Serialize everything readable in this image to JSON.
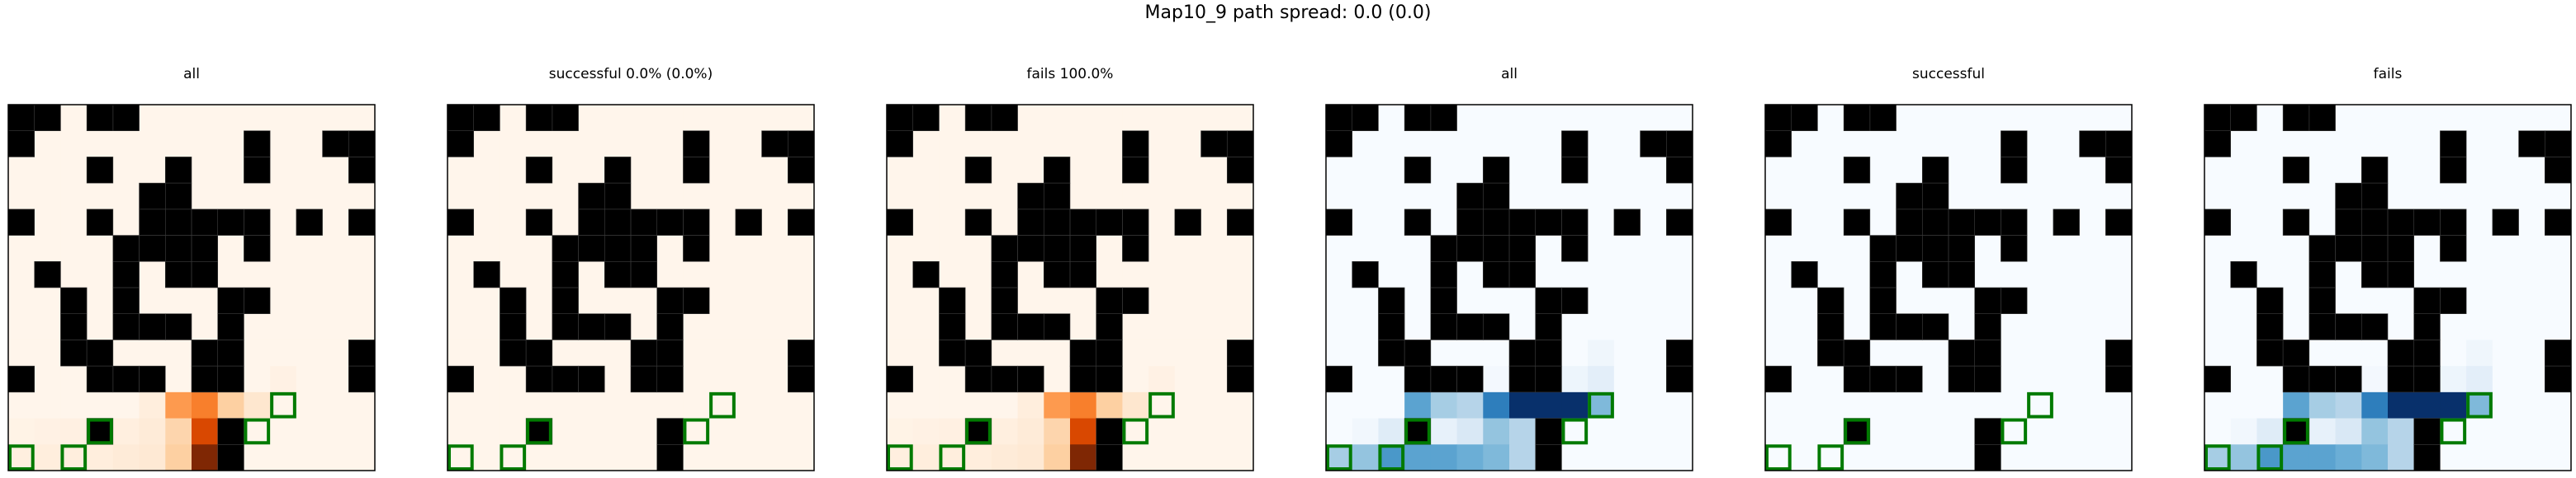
{
  "title": "Map10_9 path spread: 0.0 (0.0)",
  "colors": {
    "wall": "#000000",
    "start_marker": "#007a00",
    "frame": "#000000",
    "oranges_low": "#fff5eb",
    "blues_low": "#f7fbff"
  },
  "chart_data": {
    "type": "heatmap",
    "grid_size": 14,
    "walls": [
      [
        1,
        1,
        0,
        1,
        1,
        0,
        0,
        0,
        0,
        0,
        0,
        0,
        0,
        0
      ],
      [
        1,
        0,
        0,
        0,
        0,
        0,
        0,
        0,
        0,
        1,
        0,
        0,
        1,
        1
      ],
      [
        0,
        0,
        0,
        1,
        0,
        0,
        1,
        0,
        0,
        1,
        0,
        0,
        0,
        1
      ],
      [
        0,
        0,
        0,
        0,
        0,
        1,
        1,
        0,
        0,
        0,
        0,
        0,
        0,
        0
      ],
      [
        1,
        0,
        0,
        1,
        0,
        1,
        1,
        1,
        1,
        1,
        0,
        1,
        0,
        1
      ],
      [
        0,
        0,
        0,
        0,
        1,
        1,
        1,
        1,
        0,
        1,
        0,
        0,
        0,
        0
      ],
      [
        0,
        1,
        0,
        0,
        1,
        0,
        1,
        1,
        0,
        0,
        0,
        0,
        0,
        0
      ],
      [
        0,
        0,
        1,
        0,
        1,
        0,
        0,
        0,
        1,
        1,
        0,
        0,
        0,
        0
      ],
      [
        0,
        0,
        1,
        0,
        1,
        1,
        1,
        0,
        1,
        0,
        0,
        0,
        0,
        0
      ],
      [
        0,
        0,
        1,
        1,
        0,
        0,
        0,
        1,
        1,
        0,
        0,
        0,
        0,
        1
      ],
      [
        1,
        0,
        0,
        1,
        1,
        1,
        0,
        1,
        1,
        0,
        0,
        0,
        0,
        1
      ],
      [
        0,
        0,
        0,
        0,
        0,
        0,
        0,
        0,
        0,
        0,
        0,
        0,
        0,
        0
      ],
      [
        0,
        0,
        0,
        1,
        0,
        0,
        0,
        0,
        1,
        0,
        0,
        0,
        0,
        0
      ],
      [
        0,
        0,
        0,
        0,
        0,
        0,
        0,
        0,
        1,
        0,
        0,
        0,
        0,
        0
      ]
    ],
    "markers": [
      [
        11,
        10
      ],
      [
        12,
        3
      ],
      [
        12,
        9
      ],
      [
        13,
        0
      ],
      [
        13,
        2
      ]
    ],
    "panels": [
      {
        "title": "all",
        "cmap": "oranges",
        "values": [
          [
            0,
            0,
            0,
            0,
            0,
            0,
            0,
            0,
            0,
            0,
            0,
            0,
            0,
            0
          ],
          [
            0,
            0,
            0,
            0,
            0,
            0,
            0,
            0,
            0,
            0,
            0,
            0,
            0,
            0
          ],
          [
            0,
            0,
            0,
            0,
            0,
            0,
            0,
            0,
            0,
            0,
            0,
            0,
            0,
            0
          ],
          [
            0,
            0,
            0,
            0,
            0,
            0,
            0,
            0,
            0,
            0,
            0,
            0,
            0,
            0
          ],
          [
            0,
            0,
            0,
            0,
            0,
            0,
            0,
            0,
            0,
            0,
            0,
            0,
            0,
            0
          ],
          [
            0,
            0,
            0,
            0,
            0,
            0,
            0,
            0,
            0,
            0,
            0,
            0,
            0,
            0
          ],
          [
            0,
            0,
            0,
            0,
            0,
            0,
            0,
            0,
            0,
            0,
            0,
            0,
            0,
            0
          ],
          [
            0,
            0,
            0,
            0,
            0,
            0,
            0,
            0,
            0,
            0,
            0,
            0,
            0,
            0
          ],
          [
            0,
            0,
            0,
            0,
            0,
            0,
            0,
            0,
            0,
            0,
            0,
            0,
            0,
            0
          ],
          [
            0,
            0,
            0,
            0,
            0,
            0,
            0,
            0,
            0,
            0,
            0,
            0,
            0,
            0
          ],
          [
            0,
            0,
            0,
            0,
            0,
            0,
            0,
            0,
            0,
            0,
            0.03,
            0,
            0,
            0
          ],
          [
            0,
            0,
            0,
            0,
            0,
            0.06,
            0.45,
            0.55,
            0.25,
            0.12,
            0,
            0,
            0,
            0
          ],
          [
            0.02,
            0.03,
            0.04,
            0,
            0.05,
            0.08,
            0.22,
            0.75,
            0,
            0,
            0,
            0,
            0,
            0
          ],
          [
            0.05,
            0.06,
            0.06,
            0.06,
            0.08,
            0.1,
            0.25,
            1.0,
            0,
            0,
            0,
            0,
            0,
            0
          ]
        ]
      },
      {
        "title": "successful 0.0% (0.0%)",
        "cmap": "oranges",
        "values": []
      },
      {
        "title": "fails 100.0%",
        "cmap": "oranges",
        "values": [
          [
            0,
            0,
            0,
            0,
            0,
            0,
            0,
            0,
            0,
            0,
            0,
            0,
            0,
            0
          ],
          [
            0,
            0,
            0,
            0,
            0,
            0,
            0,
            0,
            0,
            0,
            0,
            0,
            0,
            0
          ],
          [
            0,
            0,
            0,
            0,
            0,
            0,
            0,
            0,
            0,
            0,
            0,
            0,
            0,
            0
          ],
          [
            0,
            0,
            0,
            0,
            0,
            0,
            0,
            0,
            0,
            0,
            0,
            0,
            0,
            0
          ],
          [
            0,
            0,
            0,
            0,
            0,
            0,
            0,
            0,
            0,
            0,
            0,
            0,
            0,
            0
          ],
          [
            0,
            0,
            0,
            0,
            0,
            0,
            0,
            0,
            0,
            0,
            0,
            0,
            0,
            0
          ],
          [
            0,
            0,
            0,
            0,
            0,
            0,
            0,
            0,
            0,
            0,
            0,
            0,
            0,
            0
          ],
          [
            0,
            0,
            0,
            0,
            0,
            0,
            0,
            0,
            0,
            0,
            0,
            0,
            0,
            0
          ],
          [
            0,
            0,
            0,
            0,
            0,
            0,
            0,
            0,
            0,
            0,
            0,
            0,
            0,
            0
          ],
          [
            0,
            0,
            0,
            0,
            0,
            0,
            0,
            0,
            0,
            0,
            0,
            0,
            0,
            0
          ],
          [
            0,
            0,
            0,
            0,
            0,
            0,
            0,
            0,
            0,
            0,
            0.03,
            0,
            0,
            0
          ],
          [
            0,
            0,
            0,
            0,
            0,
            0.06,
            0.45,
            0.55,
            0.25,
            0.12,
            0,
            0,
            0,
            0
          ],
          [
            0.02,
            0.03,
            0.04,
            0,
            0.05,
            0.08,
            0.22,
            0.75,
            0,
            0,
            0,
            0,
            0,
            0
          ],
          [
            0.05,
            0.06,
            0.06,
            0.06,
            0.08,
            0.1,
            0.25,
            1.0,
            0,
            0,
            0,
            0,
            0,
            0
          ]
        ]
      },
      {
        "title": "all",
        "cmap": "blues",
        "values": [
          [
            0,
            0,
            0,
            0,
            0,
            0,
            0,
            0,
            0,
            0,
            0,
            0,
            0,
            0
          ],
          [
            0,
            0,
            0,
            0,
            0,
            0,
            0,
            0,
            0,
            0,
            0,
            0,
            0,
            0
          ],
          [
            0,
            0,
            0,
            0,
            0,
            0,
            0,
            0,
            0,
            0,
            0,
            0,
            0,
            0
          ],
          [
            0,
            0,
            0,
            0,
            0,
            0,
            0,
            0,
            0,
            0,
            0,
            0,
            0,
            0
          ],
          [
            0,
            0,
            0,
            0,
            0,
            0,
            0,
            0,
            0,
            0,
            0,
            0,
            0,
            0
          ],
          [
            0,
            0,
            0,
            0,
            0,
            0,
            0,
            0,
            0,
            0,
            0,
            0,
            0,
            0
          ],
          [
            0,
            0,
            0,
            0,
            0,
            0,
            0,
            0,
            0,
            0,
            0,
            0,
            0,
            0
          ],
          [
            0,
            0,
            0,
            0,
            0,
            0,
            0,
            0,
            0,
            0,
            0,
            0,
            0,
            0
          ],
          [
            0,
            0,
            0,
            0,
            0,
            0,
            0,
            0,
            0,
            0,
            0,
            0,
            0,
            0
          ],
          [
            0,
            0,
            0,
            0,
            0,
            0,
            0,
            0,
            0,
            0,
            0.04,
            0,
            0,
            0
          ],
          [
            0,
            0,
            0,
            0,
            0,
            0,
            0.02,
            0,
            0,
            0.05,
            0.1,
            0,
            0,
            0
          ],
          [
            0,
            0,
            0,
            0.55,
            0.35,
            0.3,
            0.7,
            1.0,
            1.0,
            1.0,
            0.45,
            0,
            0,
            0
          ],
          [
            0,
            0.03,
            0.12,
            0,
            0.08,
            0.15,
            0.4,
            0.3,
            0,
            0,
            0,
            0,
            0,
            0
          ],
          [
            0.35,
            0.4,
            0.6,
            0.55,
            0.55,
            0.5,
            0.45,
            0.3,
            0,
            0,
            0,
            0,
            0,
            0
          ]
        ]
      },
      {
        "title": "successful",
        "cmap": "blues",
        "values": []
      },
      {
        "title": "fails",
        "cmap": "blues",
        "values": [
          [
            0,
            0,
            0,
            0,
            0,
            0,
            0,
            0,
            0,
            0,
            0,
            0,
            0,
            0
          ],
          [
            0,
            0,
            0,
            0,
            0,
            0,
            0,
            0,
            0,
            0,
            0,
            0,
            0,
            0
          ],
          [
            0,
            0,
            0,
            0,
            0,
            0,
            0,
            0,
            0,
            0,
            0,
            0,
            0,
            0
          ],
          [
            0,
            0,
            0,
            0,
            0,
            0,
            0,
            0,
            0,
            0,
            0,
            0,
            0,
            0
          ],
          [
            0,
            0,
            0,
            0,
            0,
            0,
            0,
            0,
            0,
            0,
            0,
            0,
            0,
            0
          ],
          [
            0,
            0,
            0,
            0,
            0,
            0,
            0,
            0,
            0,
            0,
            0,
            0,
            0,
            0
          ],
          [
            0,
            0,
            0,
            0,
            0,
            0,
            0,
            0,
            0,
            0,
            0,
            0,
            0,
            0
          ],
          [
            0,
            0,
            0,
            0,
            0,
            0,
            0,
            0,
            0,
            0,
            0,
            0,
            0,
            0
          ],
          [
            0,
            0,
            0,
            0,
            0,
            0,
            0,
            0,
            0,
            0,
            0,
            0,
            0,
            0
          ],
          [
            0,
            0,
            0,
            0,
            0,
            0,
            0,
            0,
            0,
            0,
            0.04,
            0,
            0,
            0
          ],
          [
            0,
            0,
            0,
            0,
            0,
            0,
            0.02,
            0,
            0,
            0.05,
            0.1,
            0,
            0,
            0
          ],
          [
            0,
            0,
            0,
            0.55,
            0.35,
            0.3,
            0.7,
            1.0,
            1.0,
            1.0,
            0.45,
            0,
            0,
            0
          ],
          [
            0,
            0.03,
            0.12,
            0,
            0.08,
            0.15,
            0.4,
            0.3,
            0,
            0,
            0,
            0,
            0,
            0
          ],
          [
            0.35,
            0.4,
            0.6,
            0.55,
            0.55,
            0.5,
            0.45,
            0.3,
            0,
            0,
            0,
            0,
            0,
            0
          ]
        ]
      }
    ]
  }
}
